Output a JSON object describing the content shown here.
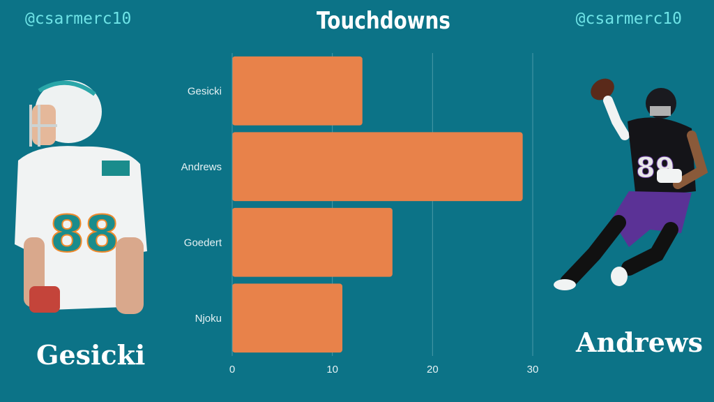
{
  "handles": {
    "left": "@csarmerc10",
    "right": "@csarmerc10"
  },
  "players": {
    "left_name": "Gesicki",
    "right_name": "Andrews"
  },
  "colors": {
    "background": "#0c7387",
    "bar": "#e8824a",
    "handle": "#6ee3e6",
    "text": "#ffffff"
  },
  "chart_data": {
    "type": "bar",
    "orientation": "horizontal",
    "title": "Touchdowns",
    "categories": [
      "Gesicki",
      "Andrews",
      "Goedert",
      "Njoku"
    ],
    "values": [
      13,
      29,
      16,
      11
    ],
    "xlim": [
      0,
      30
    ],
    "xticks": [
      0,
      10,
      20,
      30
    ],
    "grid": true
  }
}
